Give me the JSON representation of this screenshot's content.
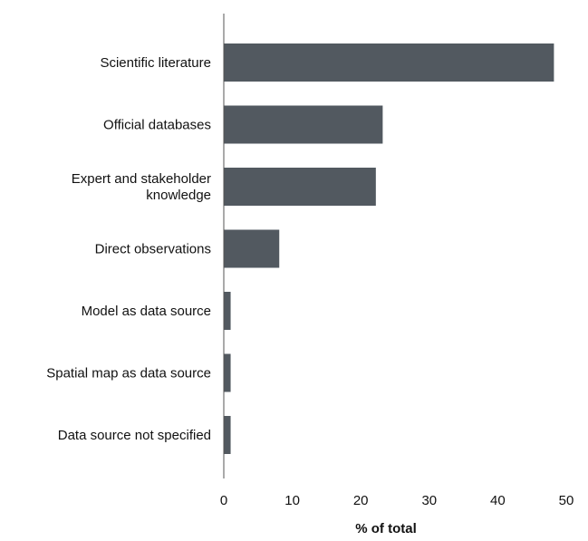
{
  "chart_data": {
    "type": "bar",
    "orientation": "horizontal",
    "categories": [
      "Scientific literature",
      "Official databases",
      "Expert and stakeholder knowledge",
      "Direct observations",
      "Model as data source",
      "Spatial map as data source",
      "Data source not specified"
    ],
    "category_lines": [
      [
        "Scientific literature"
      ],
      [
        "Official databases"
      ],
      [
        "Expert and stakeholder",
        "knowledge"
      ],
      [
        "Direct observations"
      ],
      [
        "Model as data source"
      ],
      [
        "Spatial map as data source"
      ],
      [
        "Data source not specified"
      ]
    ],
    "values": [
      48.2,
      23.2,
      22.2,
      8.1,
      1.0,
      1.0,
      1.0
    ],
    "xlabel": "% of total",
    "ylabel": "",
    "xlim": [
      0,
      50
    ],
    "xticks": [
      0,
      10,
      20,
      30,
      40,
      50
    ],
    "grid": false,
    "bar_color": "#525960"
  }
}
